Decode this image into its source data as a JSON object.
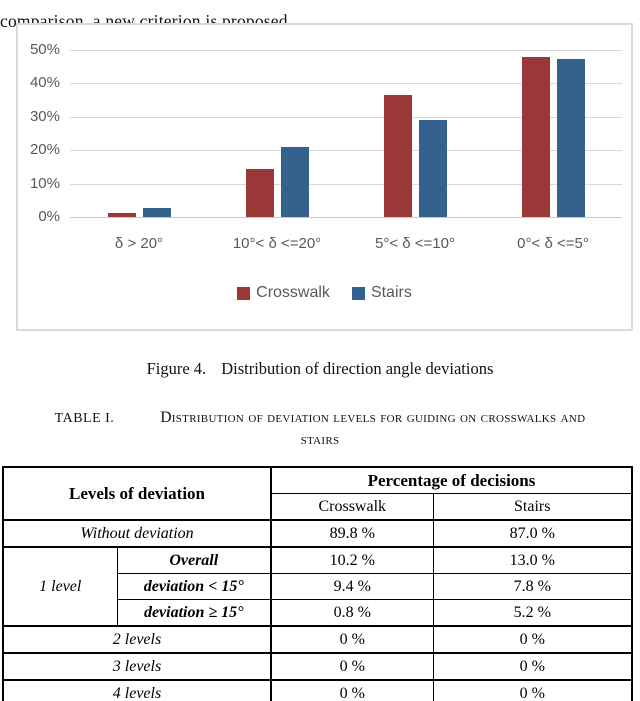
{
  "page": {
    "top_text": "comparison, a new criterion is proposed.",
    "figure_caption": {
      "label": "Figure 4.",
      "text": "Distribution of direction angle deviations"
    },
    "table_caption": {
      "label": "TABLE I.",
      "text": "Distribution of deviation levels for guiding on crosswalks and stairs"
    }
  },
  "chart_data": {
    "type": "bar",
    "title": "",
    "xlabel": "",
    "ylabel": "",
    "categories": [
      "δ > 20°",
      "10°< δ <=20°",
      "5°< δ <=10°",
      "0°< δ <=5°"
    ],
    "series": [
      {
        "name": "Crosswalk",
        "color": "#9A3837",
        "values": [
          1.1,
          14.5,
          36.5,
          47.8
        ]
      },
      {
        "name": "Stairs",
        "color": "#35618F",
        "values": [
          2.8,
          21.0,
          28.9,
          47.4
        ]
      }
    ],
    "ylim": [
      0,
      50
    ],
    "ytick_step": 10,
    "ytick_labels": [
      "0%",
      "10%",
      "20%",
      "30%",
      "40%",
      "50%"
    ],
    "grid": true,
    "legend_position": "bottom",
    "colors": {
      "axis_text": "#595959",
      "gridline": "#d9d9d9",
      "chart_border": "#d9d9d9"
    }
  },
  "table": {
    "header": {
      "levels": "Levels of deviation",
      "percentage": "Percentage of decisions",
      "col_crosswalk": "Crosswalk",
      "col_stairs": "Stairs"
    },
    "rows": {
      "without": {
        "label": "Without deviation",
        "crosswalk": "89.8 %",
        "stairs": "87.0 %"
      },
      "level1": {
        "label": "1 level",
        "overall": {
          "label": "Overall",
          "crosswalk": "10.2 %",
          "stairs": "13.0 %"
        },
        "lt15": {
          "label": "deviation < 15°",
          "crosswalk": "9.4 %",
          "stairs": "7.8 %"
        },
        "ge15": {
          "label": "deviation ≥ 15°",
          "crosswalk": "0.8 %",
          "stairs": "5.2 %"
        }
      },
      "levels2": {
        "label": "2 levels",
        "crosswalk": "0 %",
        "stairs": "0 %"
      },
      "levels3": {
        "label": "3 levels",
        "crosswalk": "0 %",
        "stairs": "0 %"
      },
      "levels4": {
        "label": "4 levels",
        "crosswalk": "0 %",
        "stairs": "0 %"
      }
    }
  }
}
